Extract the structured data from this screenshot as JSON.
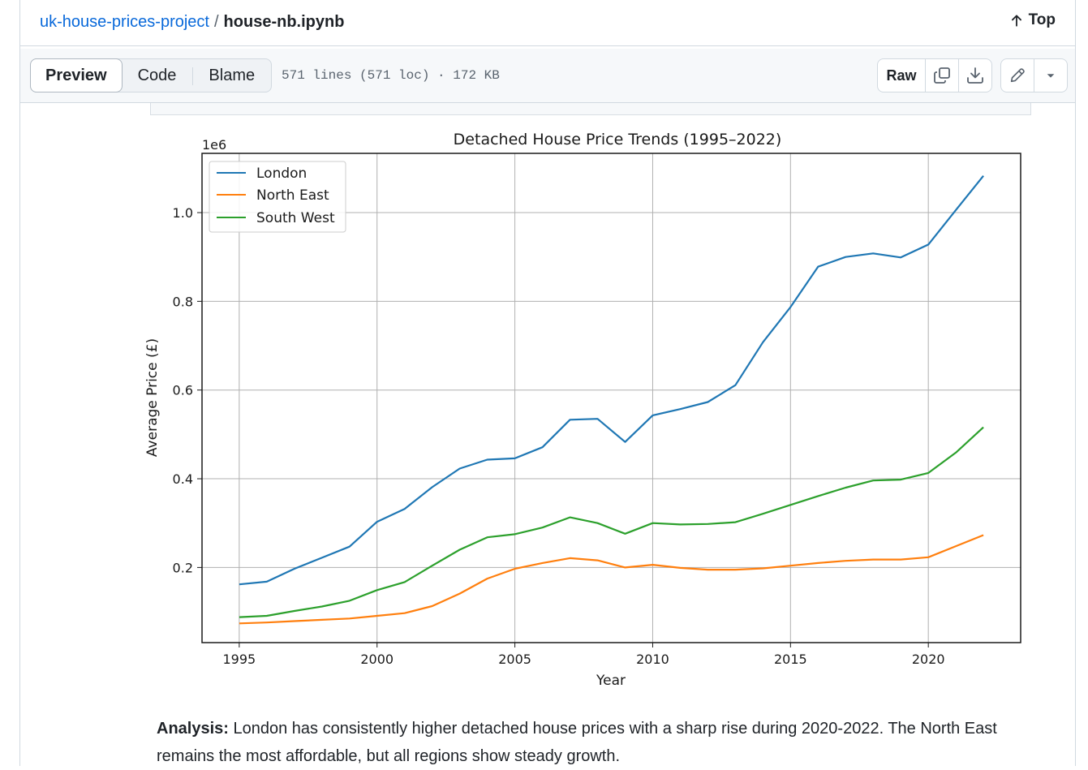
{
  "breadcrumb": {
    "repo": "uk-house-prices-project",
    "separator": "/",
    "file": "house-nb.ipynb"
  },
  "top_link": {
    "label": "Top"
  },
  "tabs": [
    {
      "label": "Preview",
      "active": true
    },
    {
      "label": "Code",
      "active": false
    },
    {
      "label": "Blame",
      "active": false
    }
  ],
  "file_meta": "571 lines (571 loc) · 172 KB",
  "actions": {
    "raw_label": "Raw"
  },
  "icons": {
    "top": "arrow-up-icon",
    "copy": "copy-icon",
    "download": "download-icon",
    "edit": "pencil-icon",
    "more": "triangle-down-icon"
  },
  "colors": {
    "link": "#0969da",
    "london": "#1f77b4",
    "north_east": "#ff7f0e",
    "south_west": "#2ca02c"
  },
  "chart_data": {
    "type": "line",
    "title": "Detached House Price Trends (1995–2022)",
    "xlabel": "Year",
    "ylabel": "Average Price (£)",
    "offset_label": "1e6",
    "xlim": [
      1993.65,
      2023.35
    ],
    "ylim": [
      0.0306,
      1.1336
    ],
    "xticks": [
      1995,
      2000,
      2005,
      2010,
      2015,
      2020
    ],
    "yticks": [
      0.2,
      0.4,
      0.6,
      0.8,
      1.0
    ],
    "ytick_labels": [
      "0.2",
      "0.4",
      "0.6",
      "0.8",
      "1.0"
    ],
    "grid": true,
    "legend_position": "upper-left",
    "x": [
      1995,
      1996,
      1997,
      1998,
      1999,
      2000,
      2001,
      2002,
      2003,
      2004,
      2005,
      2006,
      2007,
      2008,
      2009,
      2010,
      2011,
      2012,
      2013,
      2014,
      2015,
      2016,
      2017,
      2018,
      2019,
      2020,
      2021,
      2022
    ],
    "series": [
      {
        "name": "London",
        "color": "#1f77b4",
        "values": [
          0.162,
          0.168,
          0.197,
          0.222,
          0.247,
          0.303,
          0.332,
          0.381,
          0.423,
          0.443,
          0.446,
          0.471,
          0.533,
          0.535,
          0.483,
          0.543,
          0.557,
          0.573,
          0.611,
          0.708,
          0.787,
          0.878,
          0.9,
          0.908,
          0.899,
          0.928,
          1.006,
          1.083
        ]
      },
      {
        "name": "North East",
        "color": "#ff7f0e",
        "values": [
          0.074,
          0.076,
          0.079,
          0.082,
          0.085,
          0.091,
          0.097,
          0.113,
          0.141,
          0.175,
          0.197,
          0.21,
          0.221,
          0.216,
          0.2,
          0.206,
          0.199,
          0.195,
          0.195,
          0.198,
          0.204,
          0.21,
          0.215,
          0.218,
          0.218,
          0.223,
          0.248,
          0.273
        ]
      },
      {
        "name": "South West",
        "color": "#2ca02c",
        "values": [
          0.088,
          0.091,
          0.102,
          0.112,
          0.125,
          0.149,
          0.167,
          0.204,
          0.24,
          0.268,
          0.275,
          0.29,
          0.313,
          0.3,
          0.276,
          0.3,
          0.297,
          0.298,
          0.302,
          0.321,
          0.341,
          0.361,
          0.38,
          0.396,
          0.398,
          0.413,
          0.459,
          0.516
        ]
      }
    ]
  },
  "analysis": {
    "label": "Analysis:",
    "text": " London has consistently higher detached house prices with a sharp rise during 2020-2022. The North East remains the most affordable, but all regions show steady growth."
  }
}
